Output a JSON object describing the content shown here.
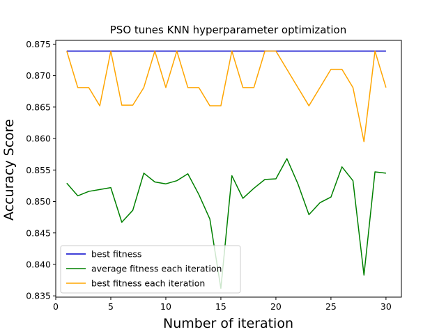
{
  "chart_data": {
    "type": "line",
    "title": "PSO tunes KNN hyperparameter optimization",
    "xlabel": "Number of iteration",
    "ylabel": "Accuracy Score",
    "xlim": [
      0,
      31.4
    ],
    "ylim": [
      0.8348,
      0.8756
    ],
    "xticks": [
      0,
      5,
      10,
      15,
      20,
      25,
      30
    ],
    "yticks": [
      0.835,
      0.84,
      0.845,
      0.85,
      0.855,
      0.86,
      0.865,
      0.87,
      0.875
    ],
    "ytick_labels": [
      "0.835",
      "0.840",
      "0.845",
      "0.850",
      "0.855",
      "0.860",
      "0.865",
      "0.870",
      "0.875"
    ],
    "grid": false,
    "legend_position": "lower-left",
    "x": [
      1,
      2,
      3,
      4,
      5,
      6,
      7,
      8,
      9,
      10,
      11,
      12,
      13,
      14,
      15,
      16,
      17,
      18,
      19,
      20,
      21,
      22,
      23,
      24,
      25,
      26,
      27,
      28,
      29,
      30
    ],
    "series": [
      {
        "name": "best fitness",
        "color": "#0000cc",
        "values": [
          0.8739,
          0.8739,
          0.8739,
          0.8739,
          0.8739,
          0.8739,
          0.8739,
          0.8739,
          0.8739,
          0.8739,
          0.8739,
          0.8739,
          0.8739,
          0.8739,
          0.8739,
          0.8739,
          0.8739,
          0.8739,
          0.8739,
          0.8739,
          0.8739,
          0.8739,
          0.8739,
          0.8739,
          0.8739,
          0.8739,
          0.8739,
          0.8739,
          0.8739,
          0.8739
        ]
      },
      {
        "name": "average fitness each iteration",
        "color": "#008000",
        "values": [
          0.8529,
          0.8509,
          0.8516,
          0.8519,
          0.8522,
          0.8467,
          0.8486,
          0.8545,
          0.8531,
          0.8528,
          0.8533,
          0.8544,
          0.8511,
          0.8472,
          0.8362,
          0.8541,
          0.8505,
          0.8521,
          0.8535,
          0.8536,
          0.8568,
          0.8528,
          0.8479,
          0.8498,
          0.8507,
          0.8555,
          0.8533,
          0.8383,
          0.8547,
          0.8545
        ]
      },
      {
        "name": "best fitness each iteration",
        "color": "#ffa500",
        "values": [
          0.8739,
          0.8681,
          0.8681,
          0.8652,
          0.8739,
          0.8653,
          0.8653,
          0.8681,
          0.8739,
          0.8681,
          0.8739,
          0.8681,
          0.8681,
          0.8652,
          0.8652,
          0.8739,
          0.8681,
          0.8681,
          0.8739,
          0.8739,
          0.871,
          0.8681,
          0.8652,
          0.8681,
          0.871,
          0.871,
          0.8681,
          0.8595,
          0.8739,
          0.8681
        ]
      }
    ]
  }
}
